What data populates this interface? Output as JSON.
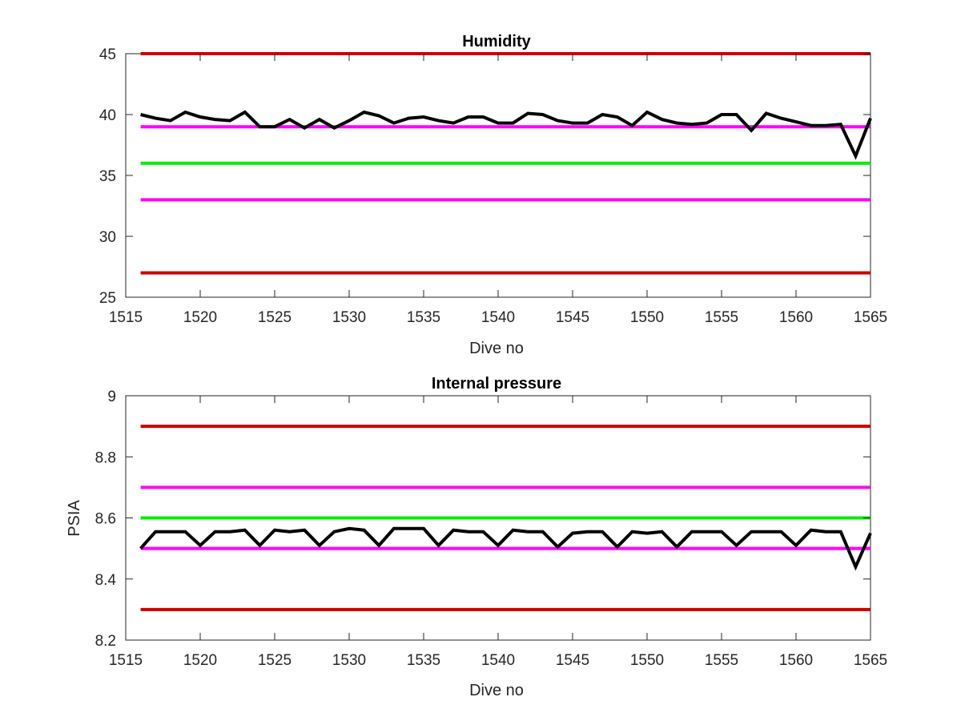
{
  "chart_data": [
    {
      "type": "line",
      "title": "Humidity",
      "xlabel": "Dive no",
      "ylabel": "",
      "xlim": [
        1515,
        1565
      ],
      "ylim": [
        25,
        45
      ],
      "xticks": [
        1515,
        1520,
        1525,
        1530,
        1535,
        1540,
        1545,
        1550,
        1555,
        1560,
        1565
      ],
      "yticks": [
        25,
        30,
        35,
        40,
        45
      ],
      "grid": false,
      "reference_lines": [
        {
          "y": 45,
          "color": "#cc0000"
        },
        {
          "y": 39,
          "color": "#ff00ff"
        },
        {
          "y": 36,
          "color": "#00ee00"
        },
        {
          "y": 33,
          "color": "#ff00ff"
        },
        {
          "y": 27,
          "color": "#cc0000"
        }
      ],
      "series": [
        {
          "color": "#000000",
          "x": [
            1516,
            1517,
            1518,
            1519,
            1520,
            1521,
            1522,
            1523,
            1524,
            1525,
            1526,
            1527,
            1528,
            1529,
            1530,
            1531,
            1532,
            1533,
            1534,
            1535,
            1536,
            1537,
            1538,
            1539,
            1540,
            1541,
            1542,
            1543,
            1544,
            1545,
            1546,
            1547,
            1548,
            1549,
            1550,
            1551,
            1552,
            1553,
            1554,
            1555,
            1556,
            1557,
            1558,
            1559,
            1560,
            1561,
            1562,
            1563,
            1564,
            1565
          ],
          "y": [
            40.0,
            39.7,
            39.5,
            40.2,
            39.8,
            39.6,
            39.5,
            40.2,
            39.0,
            39.0,
            39.6,
            38.9,
            39.6,
            38.9,
            39.5,
            40.2,
            39.9,
            39.3,
            39.7,
            39.8,
            39.5,
            39.3,
            39.8,
            39.8,
            39.3,
            39.3,
            40.1,
            40.0,
            39.5,
            39.3,
            39.3,
            40.0,
            39.8,
            39.1,
            40.2,
            39.6,
            39.3,
            39.2,
            39.3,
            40.0,
            40.0,
            38.7,
            40.1,
            39.7,
            39.4,
            39.1,
            39.1,
            39.2,
            36.6,
            39.7
          ]
        }
      ]
    },
    {
      "type": "line",
      "title": "Internal pressure",
      "xlabel": "Dive no",
      "ylabel": "PSIA",
      "xlim": [
        1515,
        1565
      ],
      "ylim": [
        8.2,
        9.0
      ],
      "xticks": [
        1515,
        1520,
        1525,
        1530,
        1535,
        1540,
        1545,
        1550,
        1555,
        1560,
        1565
      ],
      "yticks": [
        8.2,
        8.4,
        8.6,
        8.8,
        9.0
      ],
      "ytick_labels": [
        "8.2",
        "8.4",
        "8.6",
        "8.8",
        "9"
      ],
      "grid": false,
      "reference_lines": [
        {
          "y": 8.9,
          "color": "#cc0000"
        },
        {
          "y": 8.7,
          "color": "#ff00ff"
        },
        {
          "y": 8.6,
          "color": "#00ee00"
        },
        {
          "y": 8.5,
          "color": "#ff00ff"
        },
        {
          "y": 8.3,
          "color": "#cc0000"
        }
      ],
      "series": [
        {
          "color": "#000000",
          "x": [
            1516,
            1517,
            1518,
            1519,
            1520,
            1521,
            1522,
            1523,
            1524,
            1525,
            1526,
            1527,
            1528,
            1529,
            1530,
            1531,
            1532,
            1533,
            1534,
            1535,
            1536,
            1537,
            1538,
            1539,
            1540,
            1541,
            1542,
            1543,
            1544,
            1545,
            1546,
            1547,
            1548,
            1549,
            1550,
            1551,
            1552,
            1553,
            1554,
            1555,
            1556,
            1557,
            1558,
            1559,
            1560,
            1561,
            1562,
            1563,
            1564,
            1565
          ],
          "y": [
            8.5,
            8.555,
            8.555,
            8.555,
            8.51,
            8.555,
            8.555,
            8.56,
            8.51,
            8.56,
            8.555,
            8.56,
            8.51,
            8.555,
            8.565,
            8.56,
            8.51,
            8.565,
            8.565,
            8.565,
            8.51,
            8.56,
            8.555,
            8.555,
            8.51,
            8.56,
            8.555,
            8.555,
            8.505,
            8.55,
            8.555,
            8.555,
            8.505,
            8.555,
            8.55,
            8.555,
            8.505,
            8.555,
            8.555,
            8.555,
            8.51,
            8.555,
            8.555,
            8.555,
            8.51,
            8.56,
            8.555,
            8.555,
            8.44,
            8.55
          ]
        }
      ]
    }
  ]
}
